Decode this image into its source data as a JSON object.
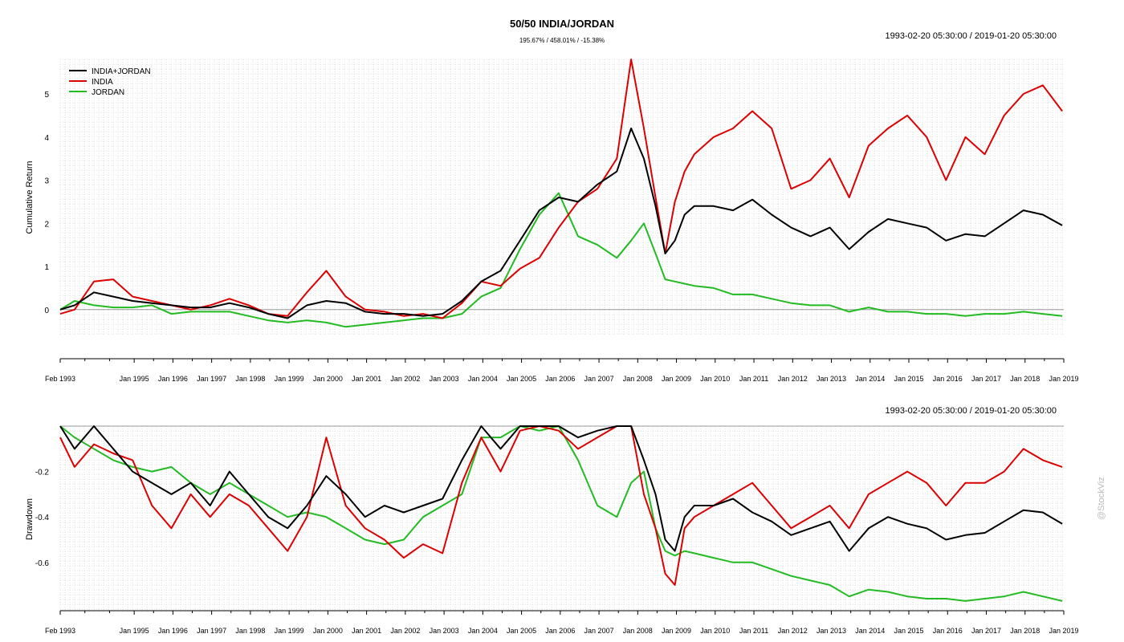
{
  "title": "50/50 INDIA/JORDAN",
  "subtitle": "195.67% / 458.01% / -15.38%",
  "date_range_top": "1993-02-20 05:30:00 / 2019-01-20 05:30:00",
  "date_range_bottom": "1993-02-20 05:30:00 / 2019-01-20 05:30:00",
  "watermark": "@StockViz",
  "colors": {
    "INDIA+JORDAN": "#000000",
    "INDIA": "#dd0000",
    "JORDAN": "#22bb22",
    "grid": "#c8c8c8"
  },
  "chart_data": [
    {
      "type": "line",
      "ylabel": "Cumulative Return",
      "ylim": [
        -0.6,
        5.8
      ],
      "yticks": [
        0,
        1,
        2,
        3,
        4,
        5
      ],
      "x_tick_labels": [
        "Feb 1993",
        "Jan 1995",
        "Jan 1996",
        "Jan 1997",
        "Jan 1998",
        "Jan 1999",
        "Jan 2000",
        "Jan 2001",
        "Jan 2002",
        "Jan 2003",
        "Jan 2004",
        "Jan 2005",
        "Jan 2006",
        "Jan 2007",
        "Jan 2008",
        "Jan 2009",
        "Jan 2010",
        "Jan 2011",
        "Jan 2012",
        "Jan 2013",
        "Jan 2014",
        "Jan 2015",
        "Jan 2016",
        "Jan 2017",
        "Jan 2018",
        "Jan 2019"
      ],
      "legend": "top-left",
      "grid": true,
      "x": [
        1993.13,
        1993.5,
        1994.0,
        1994.5,
        1995.0,
        1995.5,
        1996.0,
        1996.5,
        1997.0,
        1997.5,
        1998.0,
        1998.5,
        1999.0,
        1999.5,
        2000.0,
        2000.5,
        2001.0,
        2001.5,
        2002.0,
        2002.5,
        2003.0,
        2003.5,
        2004.0,
        2004.5,
        2005.0,
        2005.5,
        2006.0,
        2006.5,
        2007.0,
        2007.5,
        2007.87,
        2008.2,
        2008.5,
        2008.75,
        2009.0,
        2009.25,
        2009.5,
        2010.0,
        2010.5,
        2011.0,
        2011.5,
        2012.0,
        2012.5,
        2013.0,
        2013.5,
        2014.0,
        2014.5,
        2015.0,
        2015.5,
        2016.0,
        2016.5,
        2017.0,
        2017.5,
        2018.0,
        2018.5,
        2019.0
      ],
      "series": [
        {
          "name": "INDIA+JORDAN",
          "values": [
            0.0,
            0.1,
            0.4,
            0.3,
            0.2,
            0.15,
            0.1,
            0.05,
            0.05,
            0.15,
            0.05,
            -0.1,
            -0.2,
            0.1,
            0.2,
            0.15,
            -0.05,
            -0.1,
            -0.1,
            -0.15,
            -0.1,
            0.2,
            0.65,
            0.9,
            1.6,
            2.3,
            2.6,
            2.5,
            2.9,
            3.2,
            4.2,
            3.5,
            2.4,
            1.3,
            1.6,
            2.2,
            2.4,
            2.4,
            2.3,
            2.55,
            2.2,
            1.9,
            1.7,
            1.9,
            1.4,
            1.8,
            2.1,
            2.0,
            1.9,
            1.6,
            1.75,
            1.7,
            2.0,
            2.3,
            2.2,
            1.95
          ]
        },
        {
          "name": "INDIA",
          "values": [
            -0.1,
            0.0,
            0.65,
            0.7,
            0.3,
            0.2,
            0.1,
            0.0,
            0.1,
            0.25,
            0.1,
            -0.1,
            -0.15,
            0.4,
            0.9,
            0.3,
            0.0,
            -0.05,
            -0.15,
            -0.1,
            -0.2,
            0.15,
            0.65,
            0.55,
            0.95,
            1.2,
            1.9,
            2.5,
            2.8,
            3.5,
            5.8,
            4.2,
            2.6,
            1.3,
            2.5,
            3.2,
            3.6,
            4.0,
            4.2,
            4.6,
            4.2,
            2.8,
            3.0,
            3.5,
            2.6,
            3.8,
            4.2,
            4.5,
            4.0,
            3.0,
            4.0,
            3.6,
            4.5,
            5.0,
            5.2,
            4.6
          ]
        },
        {
          "name": "JORDAN",
          "values": [
            0.0,
            0.2,
            0.1,
            0.05,
            0.05,
            0.1,
            -0.1,
            -0.05,
            -0.05,
            -0.05,
            -0.15,
            -0.25,
            -0.3,
            -0.25,
            -0.3,
            -0.4,
            -0.35,
            -0.3,
            -0.25,
            -0.2,
            -0.2,
            -0.1,
            0.3,
            0.5,
            1.4,
            2.2,
            2.7,
            1.7,
            1.5,
            1.2,
            1.6,
            2.0,
            1.3,
            0.7,
            0.65,
            0.6,
            0.55,
            0.5,
            0.35,
            0.35,
            0.25,
            0.15,
            0.1,
            0.1,
            -0.05,
            0.05,
            -0.05,
            -0.05,
            -0.1,
            -0.1,
            -0.15,
            -0.1,
            -0.1,
            -0.05,
            -0.1,
            -0.15
          ]
        }
      ]
    },
    {
      "type": "line",
      "ylabel": "Drawdown",
      "ylim": [
        -0.82,
        0.0
      ],
      "yticks": [
        -0.2,
        -0.4,
        -0.6
      ],
      "x_tick_labels": [
        "Feb 1993",
        "Jan 1995",
        "Jan 1996",
        "Jan 1997",
        "Jan 1998",
        "Jan 1999",
        "Jan 2000",
        "Jan 2001",
        "Jan 2002",
        "Jan 2003",
        "Jan 2004",
        "Jan 2005",
        "Jan 2006",
        "Jan 2007",
        "Jan 2008",
        "Jan 2009",
        "Jan 2010",
        "Jan 2011",
        "Jan 2012",
        "Jan 2013",
        "Jan 2014",
        "Jan 2015",
        "Jan 2016",
        "Jan 2017",
        "Jan 2018",
        "Jan 2019"
      ],
      "grid": true,
      "x": [
        1993.13,
        1993.5,
        1994.0,
        1994.5,
        1995.0,
        1995.5,
        1996.0,
        1996.5,
        1997.0,
        1997.5,
        1998.0,
        1998.5,
        1999.0,
        1999.5,
        2000.0,
        2000.5,
        2001.0,
        2001.5,
        2002.0,
        2002.5,
        2003.0,
        2003.5,
        2004.0,
        2004.5,
        2005.0,
        2005.5,
        2006.0,
        2006.5,
        2007.0,
        2007.5,
        2007.87,
        2008.2,
        2008.5,
        2008.75,
        2009.0,
        2009.25,
        2009.5,
        2010.0,
        2010.5,
        2011.0,
        2011.5,
        2012.0,
        2012.5,
        2013.0,
        2013.5,
        2014.0,
        2014.5,
        2015.0,
        2015.5,
        2016.0,
        2016.5,
        2017.0,
        2017.5,
        2018.0,
        2018.5,
        2019.0
      ],
      "series": [
        {
          "name": "INDIA+JORDAN",
          "values": [
            0.0,
            -0.1,
            0.0,
            -0.1,
            -0.2,
            -0.25,
            -0.3,
            -0.25,
            -0.35,
            -0.2,
            -0.3,
            -0.4,
            -0.45,
            -0.35,
            -0.22,
            -0.3,
            -0.4,
            -0.35,
            -0.38,
            -0.35,
            -0.32,
            -0.15,
            0.0,
            -0.1,
            0.0,
            0.0,
            0.0,
            -0.05,
            -0.02,
            0.0,
            0.0,
            -0.15,
            -0.3,
            -0.5,
            -0.55,
            -0.4,
            -0.35,
            -0.35,
            -0.32,
            -0.38,
            -0.42,
            -0.48,
            -0.45,
            -0.42,
            -0.55,
            -0.45,
            -0.4,
            -0.43,
            -0.45,
            -0.5,
            -0.48,
            -0.47,
            -0.42,
            -0.37,
            -0.38,
            -0.43
          ]
        },
        {
          "name": "INDIA",
          "values": [
            -0.05,
            -0.18,
            -0.08,
            -0.12,
            -0.15,
            -0.35,
            -0.45,
            -0.3,
            -0.4,
            -0.3,
            -0.35,
            -0.45,
            -0.55,
            -0.4,
            -0.05,
            -0.35,
            -0.45,
            -0.5,
            -0.58,
            -0.52,
            -0.56,
            -0.25,
            -0.05,
            -0.2,
            -0.02,
            0.0,
            -0.02,
            -0.1,
            -0.05,
            0.0,
            0.0,
            -0.3,
            -0.45,
            -0.65,
            -0.7,
            -0.45,
            -0.4,
            -0.35,
            -0.3,
            -0.25,
            -0.35,
            -0.45,
            -0.4,
            -0.35,
            -0.45,
            -0.3,
            -0.25,
            -0.2,
            -0.25,
            -0.35,
            -0.25,
            -0.25,
            -0.2,
            -0.1,
            -0.15,
            -0.18
          ]
        },
        {
          "name": "JORDAN",
          "values": [
            0.0,
            -0.05,
            -0.1,
            -0.15,
            -0.18,
            -0.2,
            -0.18,
            -0.25,
            -0.3,
            -0.25,
            -0.3,
            -0.35,
            -0.4,
            -0.38,
            -0.4,
            -0.45,
            -0.5,
            -0.52,
            -0.5,
            -0.4,
            -0.35,
            -0.3,
            -0.05,
            -0.05,
            0.0,
            -0.02,
            0.0,
            -0.15,
            -0.35,
            -0.4,
            -0.25,
            -0.2,
            -0.45,
            -0.55,
            -0.57,
            -0.55,
            -0.56,
            -0.58,
            -0.6,
            -0.6,
            -0.63,
            -0.66,
            -0.68,
            -0.7,
            -0.75,
            -0.72,
            -0.73,
            -0.75,
            -0.76,
            -0.76,
            -0.77,
            -0.76,
            -0.75,
            -0.73,
            -0.75,
            -0.77
          ]
        }
      ]
    }
  ]
}
